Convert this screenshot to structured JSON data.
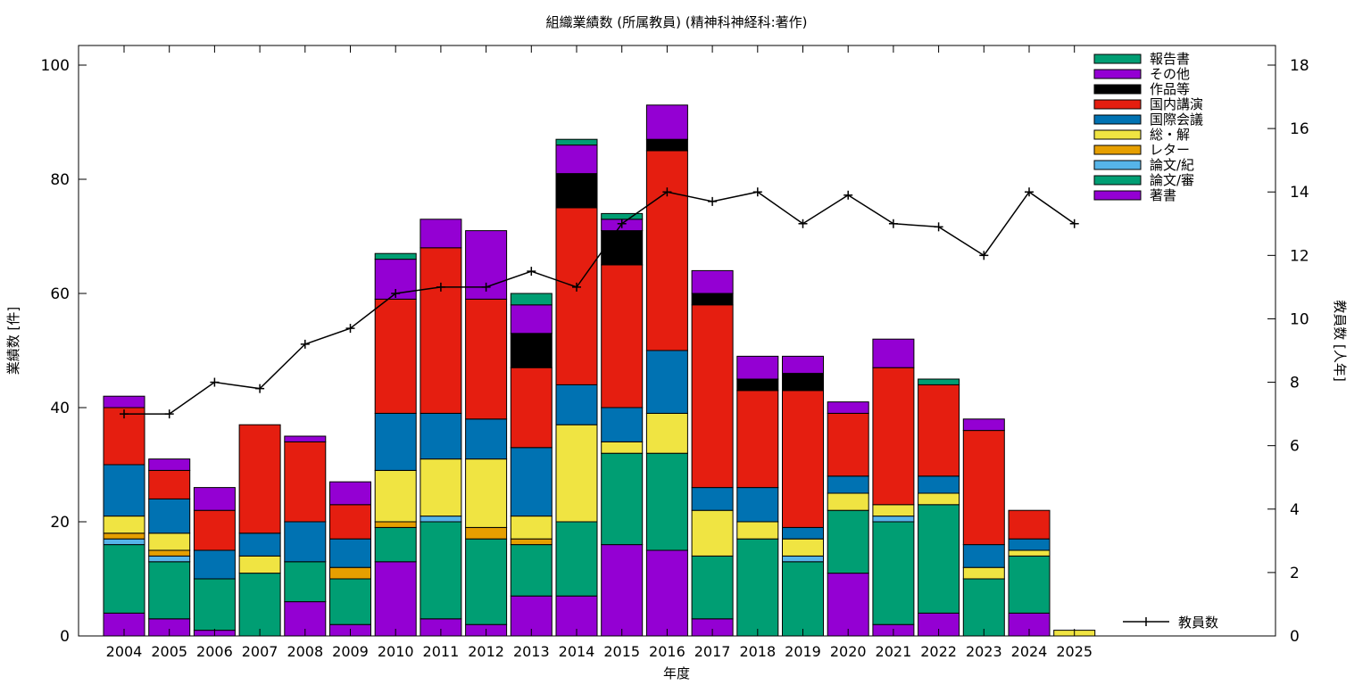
{
  "chart_data": {
    "type": "bar",
    "stacked": true,
    "title": "組織業績数 (所属教員) (精神科神経科:著作)",
    "xlabel": "年度",
    "ylabel": "業績数 [件]",
    "y2label": "教員数 [人年]",
    "ylim": [
      0,
      100
    ],
    "y2lim": [
      0,
      18
    ],
    "yticks": [
      0,
      20,
      40,
      60,
      80,
      100
    ],
    "y2ticks": [
      0,
      2,
      4,
      6,
      8,
      10,
      12,
      14,
      16,
      18
    ],
    "grid": false,
    "legend_position": "top-right",
    "categories": [
      "2004",
      "2005",
      "2006",
      "2007",
      "2008",
      "2009",
      "2010",
      "2011",
      "2012",
      "2013",
      "2014",
      "2015",
      "2016",
      "2017",
      "2018",
      "2019",
      "2020",
      "2021",
      "2022",
      "2023",
      "2024",
      "2025"
    ],
    "series": [
      {
        "name": "著書",
        "color": "#9400d3",
        "values": [
          4,
          3,
          1,
          0,
          6,
          2,
          13,
          3,
          2,
          7,
          7,
          16,
          15,
          3,
          0,
          0,
          11,
          2,
          4,
          0,
          4,
          0
        ]
      },
      {
        "name": "論文/審",
        "color": "#009e73",
        "values": [
          12,
          10,
          9,
          11,
          7,
          8,
          6,
          17,
          15,
          9,
          13,
          16,
          17,
          11,
          17,
          13,
          11,
          18,
          19,
          10,
          10,
          0
        ]
      },
      {
        "name": "論文/紀",
        "color": "#56b4e9",
        "values": [
          1,
          1,
          0,
          0,
          0,
          0,
          0,
          1,
          0,
          0,
          0,
          0,
          0,
          0,
          0,
          1,
          0,
          1,
          0,
          0,
          0,
          0
        ]
      },
      {
        "name": "レター",
        "color": "#e69f00",
        "values": [
          1,
          1,
          0,
          0,
          0,
          2,
          1,
          0,
          2,
          1,
          0,
          0,
          0,
          0,
          0,
          0,
          0,
          0,
          0,
          0,
          0,
          0
        ]
      },
      {
        "name": "総・解",
        "color": "#f0e442",
        "values": [
          3,
          3,
          0,
          3,
          0,
          0,
          9,
          10,
          12,
          4,
          17,
          2,
          7,
          8,
          3,
          3,
          3,
          2,
          2,
          2,
          1,
          1
        ]
      },
      {
        "name": "国際会議",
        "color": "#0072b2",
        "values": [
          9,
          6,
          5,
          4,
          7,
          5,
          10,
          8,
          7,
          12,
          7,
          6,
          11,
          4,
          6,
          2,
          3,
          0,
          3,
          4,
          2,
          0
        ]
      },
      {
        "name": "国内講演",
        "color": "#e51e10",
        "values": [
          10,
          5,
          7,
          19,
          14,
          6,
          20,
          29,
          21,
          14,
          31,
          25,
          35,
          32,
          17,
          24,
          11,
          24,
          16,
          20,
          5,
          0
        ]
      },
      {
        "name": "作品等",
        "color": "#000000",
        "values": [
          0,
          0,
          0,
          0,
          0,
          0,
          0,
          0,
          0,
          6,
          6,
          6,
          2,
          2,
          2,
          3,
          0,
          0,
          0,
          0,
          0,
          0
        ]
      },
      {
        "name": "その他",
        "color": "#9400d3",
        "values": [
          2,
          2,
          4,
          0,
          1,
          4,
          7,
          5,
          12,
          5,
          5,
          2,
          6,
          4,
          4,
          3,
          2,
          5,
          0,
          2,
          0,
          0
        ]
      },
      {
        "name": "報告書",
        "color": "#009e73",
        "values": [
          0,
          0,
          0,
          0,
          0,
          0,
          1,
          0,
          0,
          2,
          1,
          1,
          0,
          0,
          0,
          0,
          0,
          0,
          1,
          0,
          0,
          0
        ]
      }
    ],
    "line_series": {
      "name": "教員数",
      "axis": "y2",
      "color": "#000000",
      "values": [
        7,
        7,
        8,
        7.8,
        9.2,
        9.7,
        10.8,
        11,
        11,
        11.5,
        11,
        13,
        14,
        13.7,
        14,
        13,
        13.9,
        13,
        12.9,
        12,
        14,
        13
      ]
    }
  }
}
